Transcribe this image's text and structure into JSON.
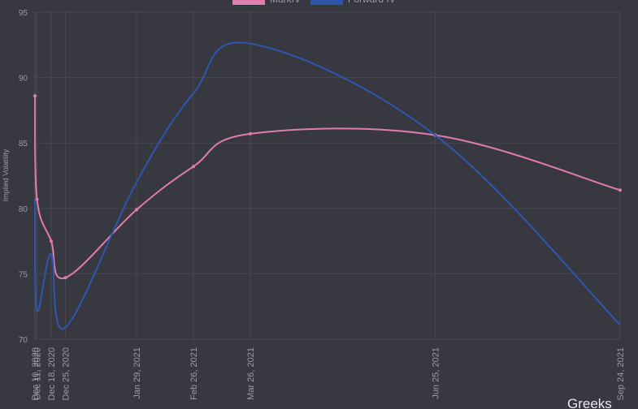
{
  "chart_data": {
    "type": "line",
    "y_label": "Implied Volatility",
    "x": [
      "Dec 10, 2020",
      "Dec 11, 2020",
      "Dec 18, 2020",
      "Dec 25, 2020",
      "Jan 29, 2021",
      "Feb 26, 2021",
      "Mar 26, 2021",
      "Jun 25, 2021",
      "Sep 24, 2021"
    ],
    "series": [
      {
        "name": "MarkIV",
        "color": "#e07cae",
        "values": [
          88.6,
          80.7,
          77.5,
          74.7,
          79.9,
          83.2,
          85.7,
          85.6,
          81.4
        ]
      },
      {
        "name": "Forward IV",
        "color": "#2f56ad",
        "values": [
          80.7,
          72.2,
          76.5,
          70.9,
          82.0,
          88.8,
          92.6,
          85.6,
          71.1
        ]
      }
    ],
    "ylim": [
      70,
      95
    ],
    "yticks": [
      70,
      75,
      80,
      85,
      90,
      95
    ],
    "grid": true,
    "watermark": "Greeks"
  }
}
